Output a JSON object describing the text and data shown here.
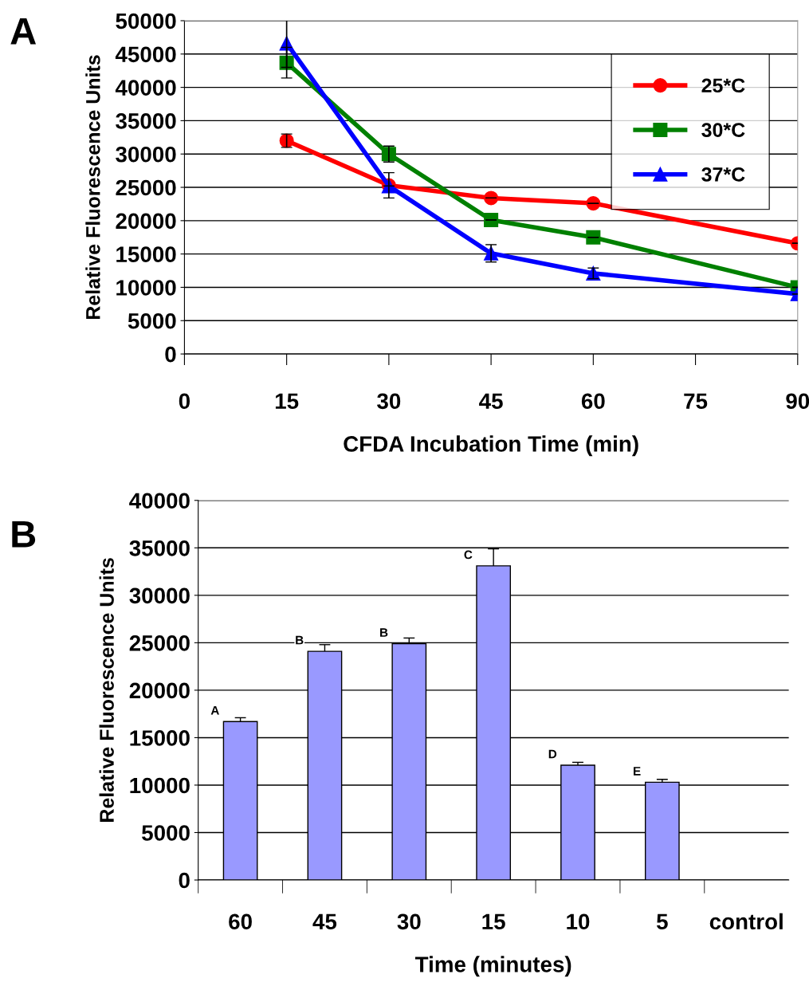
{
  "chart_data": [
    {
      "type": "line",
      "xlabel": "CFDA Incubation Time (min)",
      "ylabel": "Relative Fluorescence Units",
      "annotations": [
        "A"
      ],
      "xlim": [
        0,
        90
      ],
      "xticks": [
        0,
        15,
        30,
        45,
        60,
        75,
        90
      ],
      "ylim": [
        0,
        50000
      ],
      "yticks": [
        0,
        5000,
        10000,
        15000,
        20000,
        25000,
        30000,
        35000,
        40000,
        45000,
        50000
      ],
      "grid": "y",
      "legend": "top right",
      "line_style": "solid",
      "series": [
        {
          "name": "25*C",
          "color": "#ff0000",
          "marker": "circle",
          "x": [
            15,
            30,
            45,
            60,
            90
          ],
          "values": [
            32000,
            25300,
            23400,
            22600,
            16600
          ],
          "errors": [
            1000,
            1900,
            null,
            null,
            null
          ]
        },
        {
          "name": "30*C",
          "color": "#008000",
          "marker": "square",
          "x": [
            15,
            30,
            45,
            60,
            90
          ],
          "values": [
            43700,
            30000,
            20100,
            17500,
            10000
          ],
          "errors": [
            2300,
            1200,
            null,
            null,
            null
          ]
        },
        {
          "name": "37*C",
          "color": "#0000ff",
          "marker": "triangle",
          "x": [
            15,
            30,
            45,
            60,
            90
          ],
          "values": [
            46600,
            25200,
            15100,
            12100,
            9000
          ],
          "errors": [
            3600,
            null,
            1300,
            800,
            null
          ]
        }
      ]
    },
    {
      "type": "bar",
      "xlabel": "Time (minutes)",
      "ylabel": "Relative Fluorescence Units",
      "annotations": [
        "B",
        {
          "text": "A",
          "x": "60",
          "y": 16700
        },
        {
          "text": "B",
          "x": "45",
          "y": 24100
        },
        {
          "text": "B",
          "x": "30",
          "y": 24900
        },
        {
          "text": "C",
          "x": "15",
          "y": 33100
        },
        {
          "text": "D",
          "x": "10",
          "y": 12100
        },
        {
          "text": "E",
          "x": "5",
          "y": 10300
        }
      ],
      "categories": [
        "60",
        "45",
        "30",
        "15",
        "10",
        "5",
        "control"
      ],
      "ylim": [
        0,
        40000
      ],
      "yticks": [
        0,
        5000,
        10000,
        15000,
        20000,
        25000,
        30000,
        35000,
        40000
      ],
      "grid": "y",
      "legend": false,
      "series": [
        {
          "color": "#9999ff",
          "values": [
            16700,
            24100,
            24900,
            33100,
            12100,
            10300,
            null
          ],
          "errors": [
            400,
            700,
            600,
            1800,
            300,
            300,
            null
          ]
        }
      ]
    }
  ]
}
